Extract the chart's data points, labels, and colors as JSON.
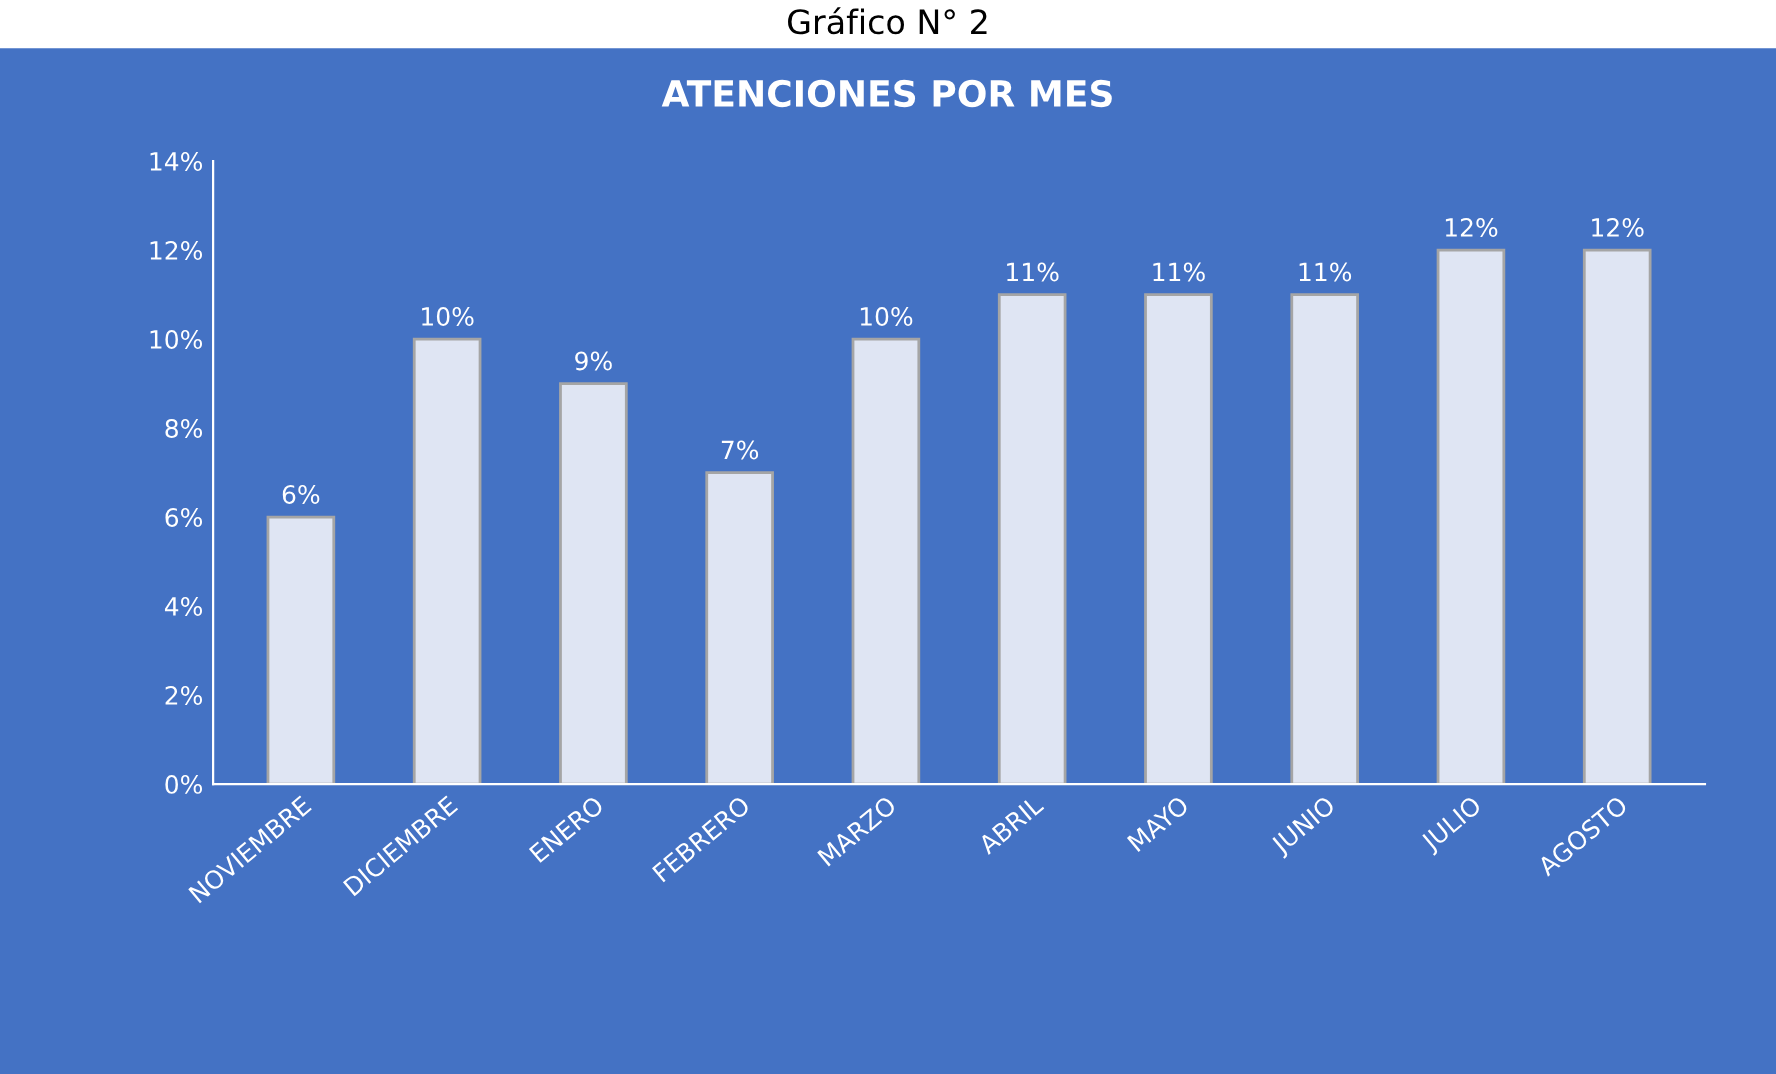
{
  "chart_data": {
    "type": "bar",
    "title": "ATENCIONES POR MES",
    "annotations": [
      "Gráfico N° 2"
    ],
    "categories": [
      "NOVIEMBRE",
      "DICIEMBRE",
      "ENERO",
      "FEBRERO",
      "MARZO",
      "ABRIL",
      "MAYO",
      "JUNIO",
      "JULIO",
      "AGOSTO"
    ],
    "values": [
      6,
      10,
      9,
      7,
      10,
      11,
      11,
      11,
      12,
      12
    ],
    "value_labels": [
      "6%",
      "10%",
      "9%",
      "7%",
      "10%",
      "11%",
      "11%",
      "11%",
      "12%",
      "12%"
    ],
    "color": "#dfe5f3",
    "ylim": [
      0,
      14
    ],
    "yticks": [
      {
        "value": 0,
        "label": "0%"
      },
      {
        "value": 2,
        "label": "2%"
      },
      {
        "value": 4,
        "label": "4%"
      },
      {
        "value": 6,
        "label": "6%"
      },
      {
        "value": 8,
        "label": "8%"
      },
      {
        "value": 10,
        "label": "10%"
      },
      {
        "value": 12,
        "label": "12%"
      },
      {
        "value": 14,
        "label": "14%"
      }
    ]
  }
}
